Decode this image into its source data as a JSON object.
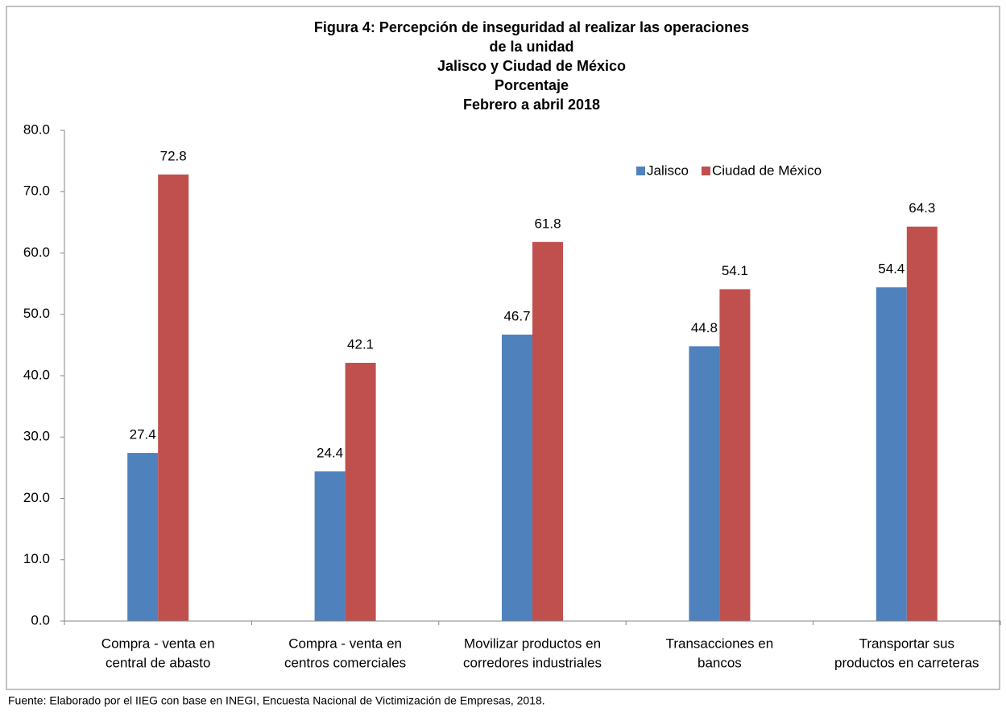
{
  "chart_data": {
    "type": "bar",
    "title": [
      "Figura 4: Percepción de inseguridad al realizar las operaciones",
      "de la unidad",
      "Jalisco y Ciudad de México",
      "Porcentaje",
      "Febrero a abril 2018"
    ],
    "categories": [
      [
        "Compra - venta en",
        "central de abasto"
      ],
      [
        "Compra - venta en",
        "centros comerciales"
      ],
      [
        "Movilizar productos en",
        "corredores industriales"
      ],
      [
        "Transacciones en",
        "bancos"
      ],
      [
        "Transportar sus",
        "productos en carreteras"
      ]
    ],
    "series": [
      {
        "name": "Jalisco",
        "color": "#4f81bd",
        "values": [
          27.4,
          24.4,
          46.7,
          44.8,
          54.4
        ]
      },
      {
        "name": "Ciudad de México",
        "color": "#c0504d",
        "values": [
          72.8,
          42.1,
          61.8,
          54.1,
          64.3
        ]
      }
    ],
    "ylim": [
      0,
      80
    ],
    "yticks": [
      {
        "value": 0,
        "label": "0.0"
      },
      {
        "value": 10,
        "label": "10.0"
      },
      {
        "value": 20,
        "label": "20.0"
      },
      {
        "value": 30,
        "label": "30.0"
      },
      {
        "value": 40,
        "label": "40.0"
      },
      {
        "value": 50,
        "label": "50.0"
      },
      {
        "value": 60,
        "label": "60.0"
      },
      {
        "value": 70,
        "label": "70.0"
      },
      {
        "value": 80,
        "label": "80.0"
      }
    ],
    "legend": "top-right",
    "source": "Fuente: Elaborado por el IIEG con base en INEGI, Encuesta Nacional de Victimización de Empresas, 2018."
  }
}
